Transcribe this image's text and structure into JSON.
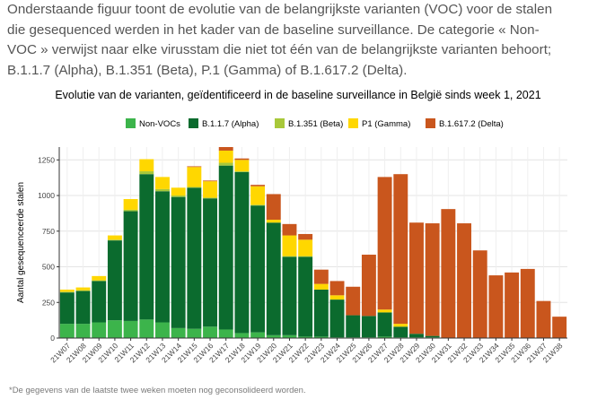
{
  "intro": {
    "lines": [
      "Onderstaande figuur toont de evolutie van de belangrijkste varianten (VOC) voor de stalen",
      "die gesequenced werden in het kader van de baseline surveillance. De categorie « Non-",
      "VOC » verwijst naar elke virusstam die niet tot één van de belangrijkste varianten behoort;",
      "B.1.1.7 (Alpha), B.1.351 (Beta), P.1 (Gamma) of B.1.617.2 (Delta)."
    ]
  },
  "chart_data": {
    "type": "bar",
    "stacked": true,
    "title": "Evolutie van de varianten, geïdentificeerd in de baseline surveillance in België sinds week 1, 2021",
    "xlabel": "",
    "ylabel": "Aantal gesequenceerde stalen",
    "ylim": [
      0,
      1340
    ],
    "yticks": [
      0,
      250,
      500,
      750,
      1000,
      1250
    ],
    "legend_position": "top",
    "categories": [
      "21W07",
      "21W08",
      "21W09",
      "21W10",
      "21W11",
      "21W12",
      "21W13",
      "21W14",
      "21W15",
      "21W16",
      "21W17",
      "21W18",
      "21W19",
      "21W20",
      "21W21",
      "21W22",
      "21W23",
      "21W24",
      "21W25",
      "21W26",
      "21W27",
      "21W28",
      "21W29",
      "21W30",
      "21W31",
      "21W32",
      "21W33",
      "21W34",
      "21W35",
      "21W36",
      "21W37",
      "21W38"
    ],
    "series": [
      {
        "name": "Non-VOCs",
        "color": "#3cb44b",
        "values": [
          100,
          100,
          110,
          125,
          120,
          130,
          110,
          70,
          65,
          80,
          60,
          35,
          40,
          20,
          20,
          10,
          10,
          5,
          5,
          5,
          10,
          5,
          5,
          5,
          0,
          0,
          0,
          0,
          0,
          0,
          0,
          0
        ]
      },
      {
        "name": "B.1.1.7 (Alpha)",
        "color": "#0b6b2e",
        "values": [
          220,
          230,
          290,
          560,
          770,
          1020,
          920,
          920,
          990,
          900,
          1150,
          1130,
          890,
          790,
          550,
          560,
          330,
          265,
          155,
          150,
          170,
          75,
          25,
          10,
          0,
          0,
          0,
          0,
          0,
          0,
          0,
          0
        ]
      },
      {
        "name": "B.1.351 (Beta)",
        "color": "#a8c83a",
        "values": [
          5,
          5,
          5,
          5,
          10,
          20,
          15,
          10,
          5,
          5,
          20,
          5,
          5,
          0,
          5,
          5,
          0,
          0,
          0,
          0,
          0,
          0,
          0,
          0,
          0,
          0,
          0,
          0,
          0,
          0,
          0,
          0
        ]
      },
      {
        "name": "P1 (Gamma)",
        "color": "#ffd700",
        "values": [
          15,
          20,
          30,
          30,
          75,
          85,
          85,
          55,
          140,
          115,
          85,
          80,
          130,
          20,
          145,
          115,
          40,
          30,
          0,
          0,
          20,
          20,
          0,
          0,
          0,
          0,
          0,
          0,
          0,
          0,
          0,
          0
        ]
      },
      {
        "name": "B.1.617.2 (Delta)",
        "color": "#c9561d",
        "values": [
          0,
          0,
          0,
          0,
          0,
          0,
          0,
          0,
          5,
          5,
          25,
          10,
          10,
          180,
          80,
          40,
          100,
          100,
          200,
          430,
          930,
          1050,
          780,
          790,
          905,
          805,
          615,
          440,
          460,
          485,
          260,
          150
        ]
      }
    ]
  },
  "footnote": "*De gegevens van de laatste twee weken moeten nog geconsolideerd worden."
}
